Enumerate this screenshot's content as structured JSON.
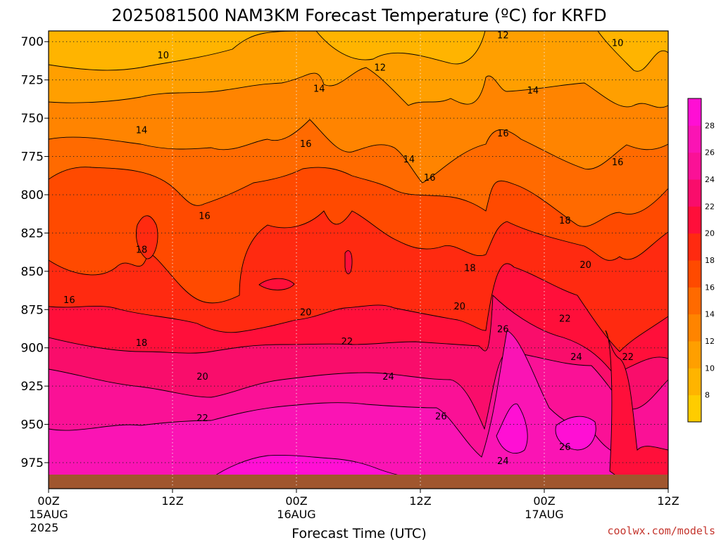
{
  "title": "2025081500 NAM3KM Forecast Temperature (ºC) for KRFD",
  "credit": "coolwx.com/models",
  "xlabel": "Forecast Time (UTC)",
  "x_ticks": [
    {
      "label": "00Z",
      "sub": "15AUG",
      "sub2": "2025"
    },
    {
      "label": "12Z",
      "sub": "",
      "sub2": ""
    },
    {
      "label": "00Z",
      "sub": "16AUG",
      "sub2": ""
    },
    {
      "label": "12Z",
      "sub": "",
      "sub2": ""
    },
    {
      "label": "00Z",
      "sub": "17AUG",
      "sub2": ""
    },
    {
      "label": "12Z",
      "sub": "",
      "sub2": ""
    }
  ],
  "chart_data": {
    "type": "heatmap",
    "variable": "Temperature (ºC)",
    "x_range_hours": [
      0,
      60
    ],
    "y_axis": "pressure (hPa)",
    "y_range": [
      992,
      693
    ],
    "y_inverted": true,
    "y_ticks": [
      700,
      725,
      750,
      775,
      800,
      825,
      850,
      875,
      900,
      925,
      950,
      975
    ],
    "x_grid_hours": [
      12,
      24,
      36,
      48
    ],
    "contour_interval": 2,
    "colorbar": {
      "ticks": [
        8,
        10,
        12,
        14,
        16,
        18,
        20,
        22,
        24,
        26,
        28
      ],
      "colors": [
        "#ffcc00",
        "#ffb400",
        "#ff9f00",
        "#ff8400",
        "#ff6a00",
        "#ff4a00",
        "#ff2a10",
        "#ff0f3a",
        "#f90d6b",
        "#fa1196",
        "#fa14b4",
        "#ff0fd4"
      ]
    },
    "temperature_profile_samples": [
      {
        "time_h": 0,
        "temps": [
          {
            "p": 700,
            "t": 9
          },
          {
            "p": 750,
            "t": 13
          },
          {
            "p": 800,
            "t": 17
          },
          {
            "p": 850,
            "t": 17
          },
          {
            "p": 900,
            "t": 19
          },
          {
            "p": 950,
            "t": 23
          },
          {
            "p": 985,
            "t": 25
          }
        ]
      },
      {
        "time_h": 24,
        "temps": [
          {
            "p": 700,
            "t": 12
          },
          {
            "p": 750,
            "t": 14
          },
          {
            "p": 800,
            "t": 17
          },
          {
            "p": 850,
            "t": 19
          },
          {
            "p": 900,
            "t": 22
          },
          {
            "p": 950,
            "t": 26
          },
          {
            "p": 985,
            "t": 28
          }
        ]
      },
      {
        "time_h": 48,
        "temps": [
          {
            "p": 700,
            "t": 13
          },
          {
            "p": 750,
            "t": 16
          },
          {
            "p": 800,
            "t": 19
          },
          {
            "p": 850,
            "t": 22
          },
          {
            "p": 900,
            "t": 25
          },
          {
            "p": 950,
            "t": 25
          },
          {
            "p": 985,
            "t": 23
          }
        ]
      }
    ],
    "contour_labels": [
      {
        "v": "10",
        "hour": 11.1,
        "p": 709
      },
      {
        "v": "14",
        "hour": 9.0,
        "p": 758
      },
      {
        "v": "16",
        "hour": 15.1,
        "p": 814
      },
      {
        "v": "18",
        "hour": 9.0,
        "p": 836
      },
      {
        "v": "16",
        "hour": 2.0,
        "p": 869
      },
      {
        "v": "18",
        "hour": 9.0,
        "p": 897
      },
      {
        "v": "20",
        "hour": 14.9,
        "p": 919
      },
      {
        "v": "22",
        "hour": 14.9,
        "p": 946
      },
      {
        "v": "14",
        "hour": 26.2,
        "p": 731
      },
      {
        "v": "12",
        "hour": 32.1,
        "p": 717
      },
      {
        "v": "16",
        "hour": 24.9,
        "p": 767
      },
      {
        "v": "20",
        "hour": 24.9,
        "p": 877
      },
      {
        "v": "22",
        "hour": 28.9,
        "p": 896
      },
      {
        "v": "24",
        "hour": 32.9,
        "p": 919
      },
      {
        "v": "26",
        "hour": 38.0,
        "p": 945
      },
      {
        "v": "14",
        "hour": 34.9,
        "p": 777
      },
      {
        "v": "16",
        "hour": 36.9,
        "p": 789
      },
      {
        "v": "18",
        "hour": 40.8,
        "p": 848
      },
      {
        "v": "20",
        "hour": 39.8,
        "p": 873
      },
      {
        "v": "12",
        "hour": 44.0,
        "p": 696
      },
      {
        "v": "14",
        "hour": 46.9,
        "p": 732
      },
      {
        "v": "16",
        "hour": 44.0,
        "p": 760
      },
      {
        "v": "26",
        "hour": 44.0,
        "p": 888
      },
      {
        "v": "24",
        "hour": 44.0,
        "p": 974
      },
      {
        "v": "10",
        "hour": 55.1,
        "p": 701
      },
      {
        "v": "18",
        "hour": 50.0,
        "p": 817
      },
      {
        "v": "20",
        "hour": 52.0,
        "p": 846
      },
      {
        "v": "22",
        "hour": 50.0,
        "p": 881
      },
      {
        "v": "24",
        "hour": 51.1,
        "p": 906
      },
      {
        "v": "22",
        "hour": 56.1,
        "p": 906
      },
      {
        "v": "16",
        "hour": 55.1,
        "p": 779
      },
      {
        "v": "26",
        "hour": 50.0,
        "p": 965
      }
    ]
  }
}
